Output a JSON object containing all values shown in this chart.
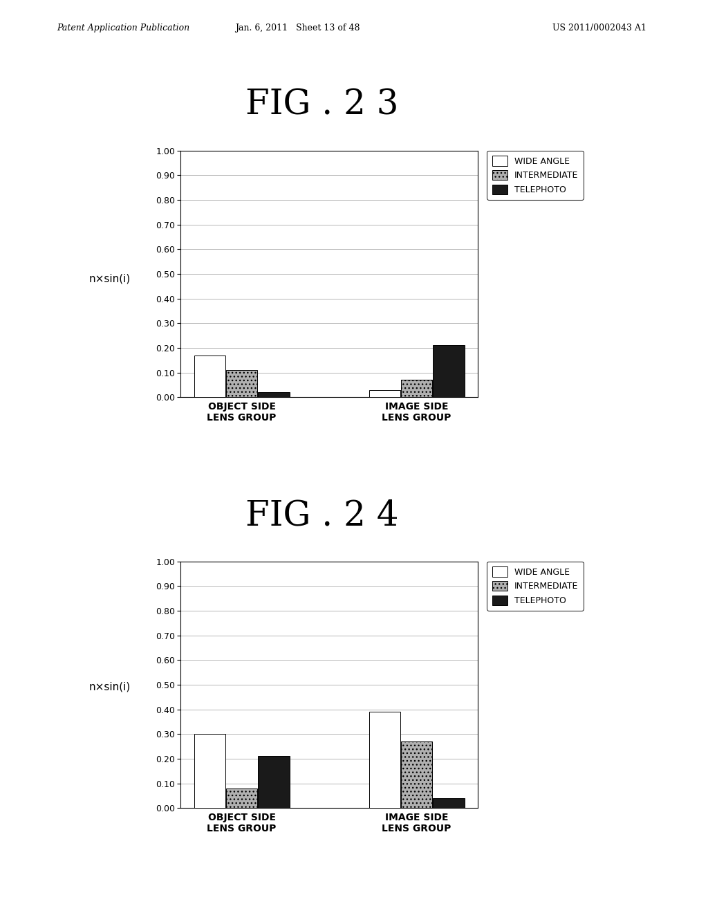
{
  "fig23": {
    "title": "FIG . 2 3",
    "ylabel": "n×sin(i)",
    "categories": [
      "OBJECT SIDE\nLENS GROUP",
      "IMAGE SIDE\nLENS GROUP"
    ],
    "series": {
      "WIDE ANGLE": [
        0.17,
        0.03
      ],
      "INTERMEDIATE": [
        0.11,
        0.07
      ],
      "TELEPHOTO": [
        0.02,
        0.21
      ]
    },
    "ylim": [
      0.0,
      1.0
    ],
    "yticks": [
      0.0,
      0.1,
      0.2,
      0.3,
      0.4,
      0.5,
      0.6,
      0.7,
      0.8,
      0.9,
      1.0
    ]
  },
  "fig24": {
    "title": "FIG . 2 4",
    "ylabel": "n×sin(i)",
    "categories": [
      "OBJECT SIDE\nLENS GROUP",
      "IMAGE SIDE\nLENS GROUP"
    ],
    "series": {
      "WIDE ANGLE": [
        0.3,
        0.39
      ],
      "INTERMEDIATE": [
        0.08,
        0.27
      ],
      "TELEPHOTO": [
        0.21,
        0.04
      ]
    },
    "ylim": [
      0.0,
      1.0
    ],
    "yticks": [
      0.0,
      0.1,
      0.2,
      0.3,
      0.4,
      0.5,
      0.6,
      0.7,
      0.8,
      0.9,
      1.0
    ]
  },
  "bar_colors": {
    "WIDE ANGLE": "#ffffff",
    "INTERMEDIATE": "#b0b0b0",
    "TELEPHOTO": "#1a1a1a"
  },
  "bar_hatches": {
    "WIDE ANGLE": "",
    "INTERMEDIATE": "...",
    "TELEPHOTO": ""
  },
  "bar_edgecolor": "#000000",
  "legend_entries": [
    "WIDE ANGLE",
    "INTERMEDIATE",
    "TELEPHOTO"
  ],
  "header_left": "Patent Application Publication",
  "header_mid": "Jan. 6, 2011   Sheet 13 of 48",
  "header_right": "US 2011/0002043 A1",
  "background_color": "#ffffff",
  "title_fontsize": 36,
  "axis_fontsize": 9,
  "ylabel_fontsize": 11,
  "legend_fontsize": 9,
  "header_fontsize": 9
}
